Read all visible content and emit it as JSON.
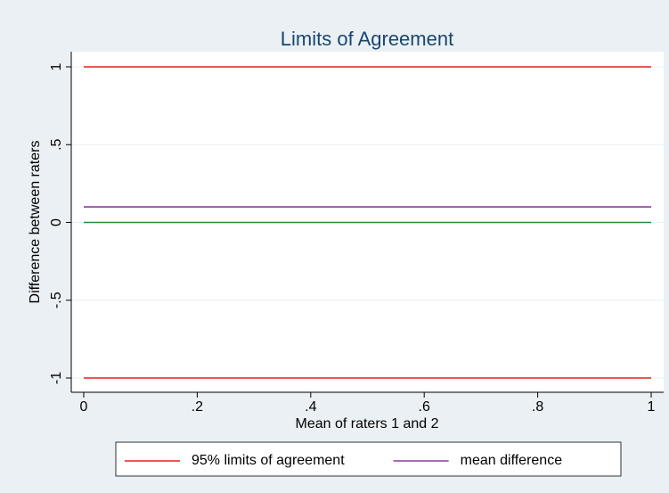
{
  "chart_data": {
    "type": "line",
    "title": "Limits of Agreement",
    "xlabel": "Mean of raters 1 and 2",
    "ylabel": "Difference between raters",
    "x": [
      0,
      1
    ],
    "series": [
      {
        "name": "95% limits of agreement",
        "color": "#e3201b",
        "values": [
          1,
          1
        ]
      },
      {
        "color": "#e3201b",
        "values": [
          -1,
          -1
        ]
      },
      {
        "color": "#2e8b3b",
        "values": [
          0,
          0
        ]
      },
      {
        "name": "mean difference",
        "color": "#8e3a9e",
        "values": [
          0.1,
          0.1
        ]
      }
    ],
    "xlim": [
      0,
      1
    ],
    "xticks": [
      0,
      {
        "value": 0.2,
        "label": ".2"
      },
      {
        "value": 0.4,
        "label": ".4"
      },
      {
        "value": 0.6,
        "label": ".6"
      },
      {
        "value": 0.8,
        "label": ".8"
      },
      1
    ],
    "ylim": [
      -1,
      1
    ],
    "yticks": [
      1,
      {
        "value": 0.5,
        "label": ".5"
      },
      0,
      {
        "value": -0.5,
        "label": "-.5"
      },
      -1
    ],
    "grid": true,
    "legend": "bottom"
  }
}
